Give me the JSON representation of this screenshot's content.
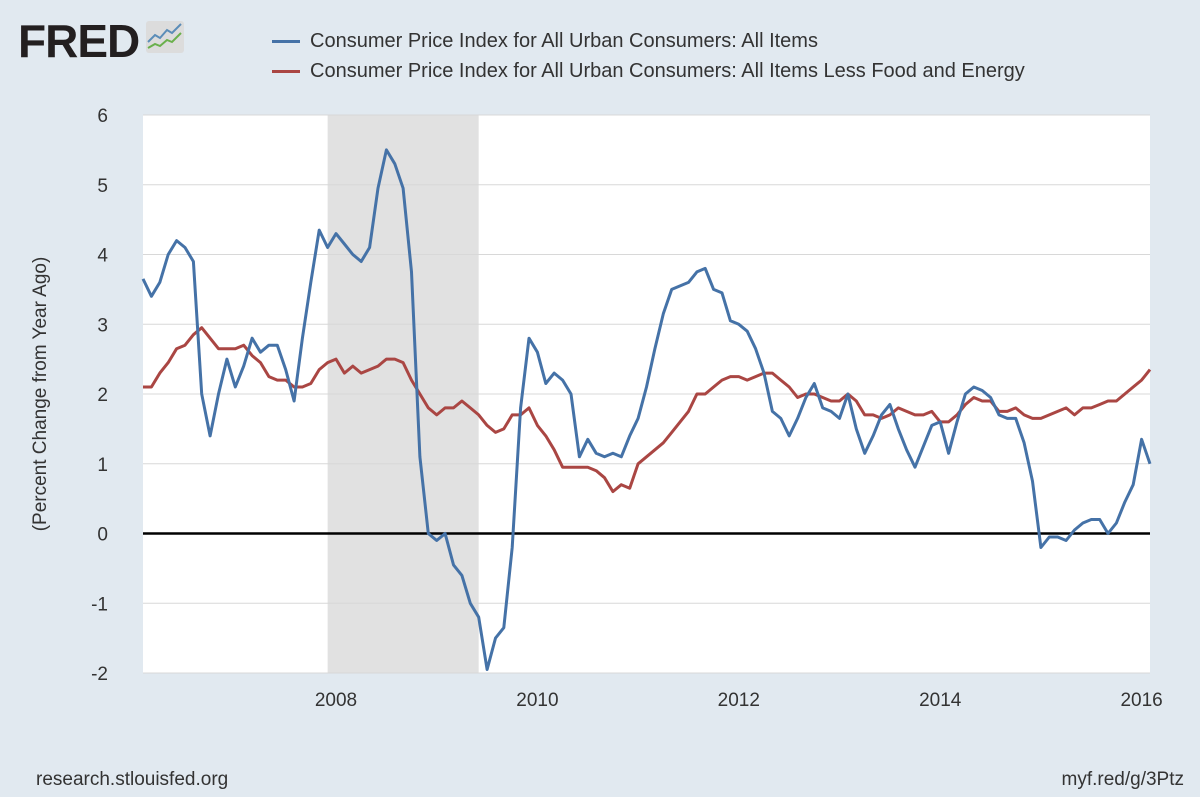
{
  "logo": {
    "text": "FRED"
  },
  "colors": {
    "series1": "#4572a7",
    "series2": "#aa4643",
    "recession": "#e1e1e1",
    "background": "#e1e9f0"
  },
  "chart_data": {
    "type": "line",
    "x_start": "2006-02",
    "frequency": "monthly",
    "ylabel": "(Percent Change from Year Ago)",
    "ylim": [
      -2,
      6
    ],
    "yticks": [
      "6",
      "5",
      "4",
      "3",
      "2",
      "1",
      "0",
      "-1",
      "-2"
    ],
    "xticks": [
      "2008",
      "2010",
      "2012",
      "2014",
      "2016"
    ],
    "grid": true,
    "legend": "top",
    "recession": {
      "start": "2007-12",
      "end": "2009-06"
    },
    "series": [
      {
        "name": "Consumer Price Index for All Urban Consumers: All Items",
        "values": [
          3.65,
          3.4,
          3.6,
          4.0,
          4.2,
          4.1,
          3.9,
          2.0,
          1.4,
          2.0,
          2.5,
          2.1,
          2.4,
          2.8,
          2.6,
          2.7,
          2.7,
          2.35,
          1.9,
          2.8,
          3.6,
          4.35,
          4.1,
          4.3,
          4.15,
          4.0,
          3.9,
          4.1,
          4.95,
          5.5,
          5.3,
          4.95,
          3.75,
          1.1,
          0.0,
          -0.1,
          0.0,
          -0.45,
          -0.6,
          -1.0,
          -1.2,
          -1.95,
          -1.5,
          -1.35,
          -0.2,
          1.8,
          2.8,
          2.6,
          2.15,
          2.3,
          2.2,
          2.0,
          1.1,
          1.35,
          1.15,
          1.1,
          1.15,
          1.1,
          1.4,
          1.65,
          2.1,
          2.65,
          3.15,
          3.5,
          3.55,
          3.6,
          3.75,
          3.8,
          3.5,
          3.45,
          3.05,
          3.0,
          2.9,
          2.65,
          2.3,
          1.75,
          1.65,
          1.4,
          1.65,
          1.95,
          2.15,
          1.8,
          1.75,
          1.65,
          2.0,
          1.5,
          1.15,
          1.4,
          1.7,
          1.85,
          1.5,
          1.2,
          0.95,
          1.25,
          1.55,
          1.6,
          1.15,
          1.6,
          2.0,
          2.1,
          2.05,
          1.95,
          1.7,
          1.65,
          1.65,
          1.3,
          0.75,
          -0.2,
          -0.05,
          -0.05,
          -0.1,
          0.05,
          0.15,
          0.2,
          0.2,
          0.0,
          0.15,
          0.45,
          0.7,
          1.35,
          1.0
        ]
      },
      {
        "name": "Consumer Price Index for All Urban Consumers: All Items Less Food and Energy",
        "values": [
          2.1,
          2.1,
          2.3,
          2.45,
          2.65,
          2.7,
          2.85,
          2.95,
          2.8,
          2.65,
          2.65,
          2.65,
          2.7,
          2.55,
          2.45,
          2.25,
          2.2,
          2.2,
          2.1,
          2.1,
          2.15,
          2.35,
          2.45,
          2.5,
          2.3,
          2.4,
          2.3,
          2.35,
          2.4,
          2.5,
          2.5,
          2.45,
          2.2,
          2.0,
          1.8,
          1.7,
          1.8,
          1.8,
          1.9,
          1.8,
          1.7,
          1.55,
          1.45,
          1.5,
          1.7,
          1.7,
          1.8,
          1.55,
          1.4,
          1.2,
          0.95,
          0.95,
          0.95,
          0.95,
          0.9,
          0.8,
          0.6,
          0.7,
          0.65,
          1.0,
          1.1,
          1.2,
          1.3,
          1.45,
          1.6,
          1.75,
          2.0,
          2.0,
          2.1,
          2.2,
          2.25,
          2.25,
          2.2,
          2.25,
          2.3,
          2.3,
          2.2,
          2.1,
          1.95,
          2.0,
          2.0,
          1.95,
          1.9,
          1.9,
          2.0,
          1.9,
          1.7,
          1.7,
          1.65,
          1.7,
          1.8,
          1.75,
          1.7,
          1.7,
          1.75,
          1.6,
          1.6,
          1.7,
          1.85,
          1.95,
          1.9,
          1.9,
          1.75,
          1.75,
          1.8,
          1.7,
          1.65,
          1.65,
          1.7,
          1.75,
          1.8,
          1.7,
          1.8,
          1.8,
          1.85,
          1.9,
          1.9,
          2.0,
          2.1,
          2.2,
          2.35
        ]
      }
    ]
  },
  "footer": {
    "left": "research.stlouisfed.org",
    "right": "myf.red/g/3Ptz"
  }
}
